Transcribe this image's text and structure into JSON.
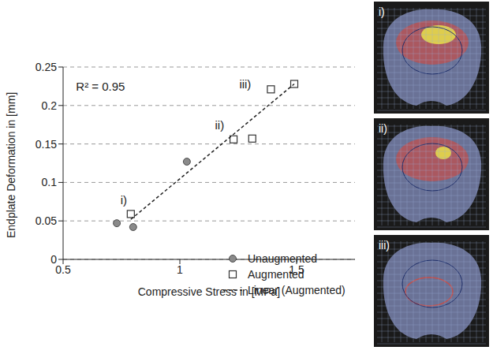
{
  "chart_data": {
    "type": "scatter",
    "x_label": "Compressive Stress in [MPa]",
    "y_label": "Endplate Deformation in [mm]",
    "xlim": [
      0.5,
      1.75
    ],
    "xticks": [
      0.5,
      1,
      1.5
    ],
    "ylim": [
      0,
      0.25
    ],
    "yticks": [
      0,
      0.05,
      0.1,
      0.15,
      0.2,
      0.25
    ],
    "grid": true,
    "legend": "lower right",
    "series": [
      {
        "name": "Unaugmented",
        "type": "scatter",
        "marker": "circle",
        "color": "#8a8a8a",
        "x": [
          0.73,
          0.8,
          1.03
        ],
        "values": [
          0.047,
          0.042,
          0.127
        ]
      },
      {
        "name": "Augmented",
        "type": "scatter",
        "marker": "square",
        "color": "#333333",
        "x": [
          0.79,
          1.23,
          1.31,
          1.39,
          1.49
        ],
        "values": [
          0.059,
          0.156,
          0.157,
          0.221,
          0.228
        ]
      },
      {
        "name": "Linear (Augmented)",
        "type": "line",
        "line_style": "dashed",
        "color": "#222222",
        "x": [
          0.79,
          1.49
        ],
        "values": [
          0.052,
          0.228
        ]
      }
    ],
    "annotations": [
      {
        "text": "R² = 0.95",
        "x": 0.66,
        "y": 0.225
      },
      {
        "text": "i)",
        "x": 0.76,
        "y": 0.077
      },
      {
        "text": "ii)",
        "x": 1.17,
        "y": 0.175
      },
      {
        "text": "iii)",
        "x": 1.28,
        "y": 0.228
      }
    ]
  },
  "images": {
    "labels": [
      "i)",
      "ii)",
      "iii)"
    ]
  }
}
